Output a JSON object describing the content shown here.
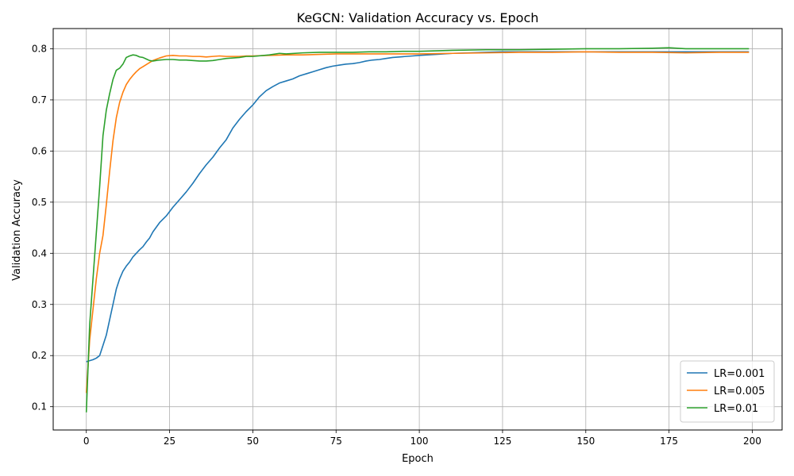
{
  "chart_data": {
    "type": "line",
    "title": "KeGCN: Validation Accuracy vs. Epoch",
    "xlabel": "Epoch",
    "ylabel": "Validation Accuracy",
    "xlim": [
      -9.95,
      208.95
    ],
    "ylim": [
      0.0545,
      0.8395
    ],
    "xticks": [
      0,
      25,
      50,
      75,
      100,
      125,
      150,
      175,
      200
    ],
    "yticks": [
      0.1,
      0.2,
      0.3,
      0.4,
      0.5,
      0.6,
      0.7,
      0.8
    ],
    "grid": true,
    "legend_position": "lower-right",
    "series": [
      {
        "name": "LR=0.001",
        "color": "#1f77b4",
        "points": [
          [
            0,
            0.188
          ],
          [
            1,
            0.19
          ],
          [
            2,
            0.192
          ],
          [
            3,
            0.195
          ],
          [
            4,
            0.2
          ],
          [
            5,
            0.22
          ],
          [
            6,
            0.24
          ],
          [
            7,
            0.27
          ],
          [
            8,
            0.3
          ],
          [
            9,
            0.33
          ],
          [
            10,
            0.35
          ],
          [
            11,
            0.365
          ],
          [
            12,
            0.375
          ],
          [
            13,
            0.383
          ],
          [
            14,
            0.393
          ],
          [
            15,
            0.4
          ],
          [
            16,
            0.407
          ],
          [
            17,
            0.413
          ],
          [
            18,
            0.422
          ],
          [
            19,
            0.43
          ],
          [
            20,
            0.442
          ],
          [
            22,
            0.46
          ],
          [
            24,
            0.473
          ],
          [
            26,
            0.49
          ],
          [
            28,
            0.505
          ],
          [
            30,
            0.52
          ],
          [
            32,
            0.537
          ],
          [
            34,
            0.556
          ],
          [
            36,
            0.573
          ],
          [
            38,
            0.588
          ],
          [
            40,
            0.606
          ],
          [
            42,
            0.622
          ],
          [
            44,
            0.645
          ],
          [
            46,
            0.662
          ],
          [
            48,
            0.677
          ],
          [
            50,
            0.69
          ],
          [
            52,
            0.706
          ],
          [
            54,
            0.718
          ],
          [
            56,
            0.726
          ],
          [
            58,
            0.733
          ],
          [
            60,
            0.737
          ],
          [
            62,
            0.741
          ],
          [
            64,
            0.747
          ],
          [
            66,
            0.751
          ],
          [
            68,
            0.755
          ],
          [
            70,
            0.759
          ],
          [
            72,
            0.763
          ],
          [
            74,
            0.766
          ],
          [
            76,
            0.768
          ],
          [
            78,
            0.77
          ],
          [
            80,
            0.771
          ],
          [
            82,
            0.773
          ],
          [
            84,
            0.776
          ],
          [
            86,
            0.778
          ],
          [
            88,
            0.779
          ],
          [
            90,
            0.781
          ],
          [
            92,
            0.783
          ],
          [
            94,
            0.784
          ],
          [
            96,
            0.785
          ],
          [
            98,
            0.786
          ],
          [
            100,
            0.787
          ],
          [
            105,
            0.789
          ],
          [
            110,
            0.791
          ],
          [
            115,
            0.792
          ],
          [
            120,
            0.793
          ],
          [
            125,
            0.794
          ],
          [
            130,
            0.794
          ],
          [
            140,
            0.794
          ],
          [
            150,
            0.794
          ],
          [
            160,
            0.794
          ],
          [
            170,
            0.794
          ],
          [
            180,
            0.794
          ],
          [
            190,
            0.794
          ],
          [
            199,
            0.794
          ]
        ]
      },
      {
        "name": "LR=0.005",
        "color": "#ff7f0e",
        "points": [
          [
            0,
            0.127
          ],
          [
            1,
            0.23
          ],
          [
            2,
            0.29
          ],
          [
            3,
            0.35
          ],
          [
            4,
            0.4
          ],
          [
            5,
            0.435
          ],
          [
            6,
            0.495
          ],
          [
            7,
            0.56
          ],
          [
            8,
            0.62
          ],
          [
            9,
            0.665
          ],
          [
            10,
            0.695
          ],
          [
            11,
            0.715
          ],
          [
            12,
            0.73
          ],
          [
            13,
            0.74
          ],
          [
            14,
            0.748
          ],
          [
            15,
            0.755
          ],
          [
            16,
            0.761
          ],
          [
            17,
            0.765
          ],
          [
            18,
            0.769
          ],
          [
            19,
            0.773
          ],
          [
            20,
            0.777
          ],
          [
            22,
            0.782
          ],
          [
            24,
            0.786
          ],
          [
            26,
            0.787
          ],
          [
            28,
            0.786
          ],
          [
            30,
            0.786
          ],
          [
            32,
            0.785
          ],
          [
            34,
            0.785
          ],
          [
            36,
            0.784
          ],
          [
            38,
            0.785
          ],
          [
            40,
            0.786
          ],
          [
            42,
            0.785
          ],
          [
            44,
            0.785
          ],
          [
            46,
            0.785
          ],
          [
            48,
            0.786
          ],
          [
            50,
            0.786
          ],
          [
            55,
            0.787
          ],
          [
            60,
            0.788
          ],
          [
            65,
            0.788
          ],
          [
            70,
            0.789
          ],
          [
            75,
            0.79
          ],
          [
            80,
            0.79
          ],
          [
            85,
            0.79
          ],
          [
            90,
            0.79
          ],
          [
            95,
            0.79
          ],
          [
            100,
            0.79
          ],
          [
            110,
            0.791
          ],
          [
            120,
            0.792
          ],
          [
            130,
            0.793
          ],
          [
            140,
            0.793
          ],
          [
            150,
            0.794
          ],
          [
            160,
            0.793
          ],
          [
            170,
            0.793
          ],
          [
            180,
            0.792
          ],
          [
            190,
            0.793
          ],
          [
            199,
            0.793
          ]
        ]
      },
      {
        "name": "LR=0.01",
        "color": "#2ca02c",
        "points": [
          [
            0,
            0.089
          ],
          [
            1,
            0.26
          ],
          [
            2,
            0.35
          ],
          [
            3,
            0.44
          ],
          [
            4,
            0.53
          ],
          [
            5,
            0.63
          ],
          [
            6,
            0.68
          ],
          [
            7,
            0.712
          ],
          [
            8,
            0.74
          ],
          [
            9,
            0.758
          ],
          [
            10,
            0.762
          ],
          [
            11,
            0.77
          ],
          [
            12,
            0.783
          ],
          [
            13,
            0.786
          ],
          [
            14,
            0.788
          ],
          [
            15,
            0.787
          ],
          [
            16,
            0.784
          ],
          [
            17,
            0.783
          ],
          [
            18,
            0.78
          ],
          [
            19,
            0.777
          ],
          [
            20,
            0.776
          ],
          [
            22,
            0.778
          ],
          [
            24,
            0.779
          ],
          [
            26,
            0.779
          ],
          [
            28,
            0.778
          ],
          [
            30,
            0.778
          ],
          [
            32,
            0.777
          ],
          [
            34,
            0.776
          ],
          [
            36,
            0.776
          ],
          [
            38,
            0.777
          ],
          [
            40,
            0.779
          ],
          [
            42,
            0.781
          ],
          [
            44,
            0.782
          ],
          [
            46,
            0.783
          ],
          [
            48,
            0.785
          ],
          [
            50,
            0.785
          ],
          [
            55,
            0.788
          ],
          [
            58,
            0.791
          ],
          [
            60,
            0.79
          ],
          [
            65,
            0.792
          ],
          [
            70,
            0.793
          ],
          [
            75,
            0.793
          ],
          [
            80,
            0.793
          ],
          [
            85,
            0.794
          ],
          [
            90,
            0.794
          ],
          [
            95,
            0.795
          ],
          [
            100,
            0.795
          ],
          [
            110,
            0.797
          ],
          [
            120,
            0.798
          ],
          [
            130,
            0.798
          ],
          [
            140,
            0.799
          ],
          [
            150,
            0.8
          ],
          [
            160,
            0.8
          ],
          [
            170,
            0.801
          ],
          [
            175,
            0.802
          ],
          [
            180,
            0.8
          ],
          [
            190,
            0.8
          ],
          [
            199,
            0.8
          ]
        ]
      }
    ]
  }
}
